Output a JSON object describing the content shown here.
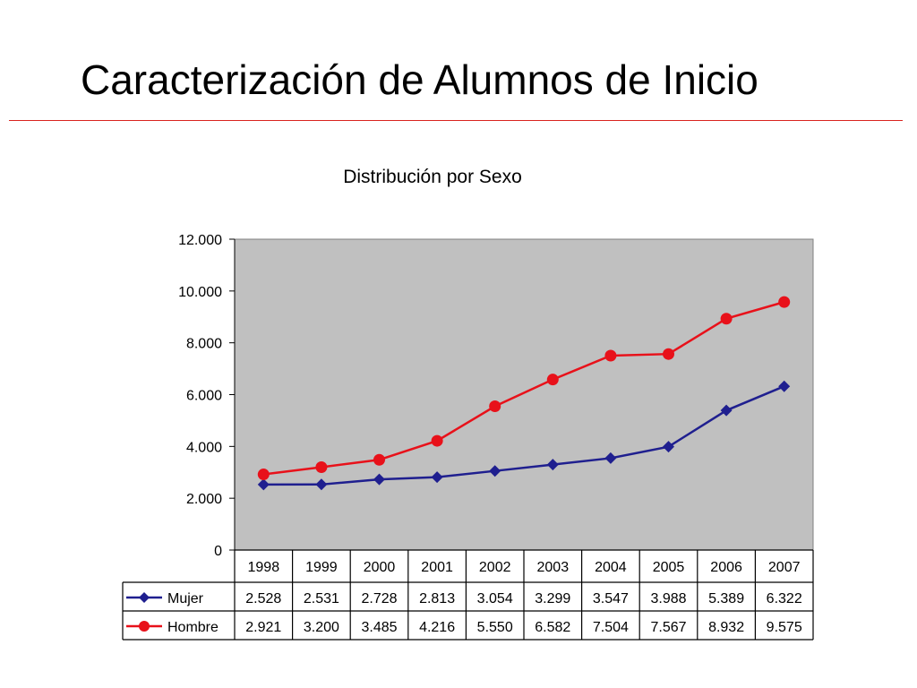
{
  "slide": {
    "title": "Caracterización de Alumnos de Inicio"
  },
  "colors": {
    "accent_rule": "#d9231f",
    "plot_background": "#c0c0c0",
    "mujer": "#1f1f8f",
    "hombre": "#e8111a"
  },
  "chart_data": {
    "type": "line",
    "title": "Distribución por Sexo",
    "xlabel": "",
    "ylabel": "",
    "categories": [
      "1998",
      "1999",
      "2000",
      "2001",
      "2002",
      "2003",
      "2004",
      "2005",
      "2006",
      "2007"
    ],
    "series": [
      {
        "name": "Mujer",
        "marker": "diamond",
        "color": "#1f1f8f",
        "values": [
          2528,
          2531,
          2728,
          2813,
          3054,
          3299,
          3547,
          3988,
          5389,
          6322
        ],
        "labels": [
          "2.528",
          "2.531",
          "2.728",
          "2.813",
          "3.054",
          "3.299",
          "3.547",
          "3.988",
          "5.389",
          "6.322"
        ]
      },
      {
        "name": "Hombre",
        "marker": "circle",
        "color": "#e8111a",
        "values": [
          2921,
          3200,
          3485,
          4216,
          5550,
          6582,
          7504,
          7567,
          8932,
          9575
        ],
        "labels": [
          "2.921",
          "3.200",
          "3.485",
          "4.216",
          "5.550",
          "6.582",
          "7.504",
          "7.567",
          "8.932",
          "9.575"
        ]
      }
    ],
    "ylim": [
      0,
      12000
    ],
    "yticks": [
      0,
      2000,
      4000,
      6000,
      8000,
      10000,
      12000
    ],
    "ytick_labels": [
      "0",
      "2.000",
      "4.000",
      "6.000",
      "8.000",
      "10.000",
      "12.000"
    ],
    "grid": false,
    "legend": "data-table"
  }
}
